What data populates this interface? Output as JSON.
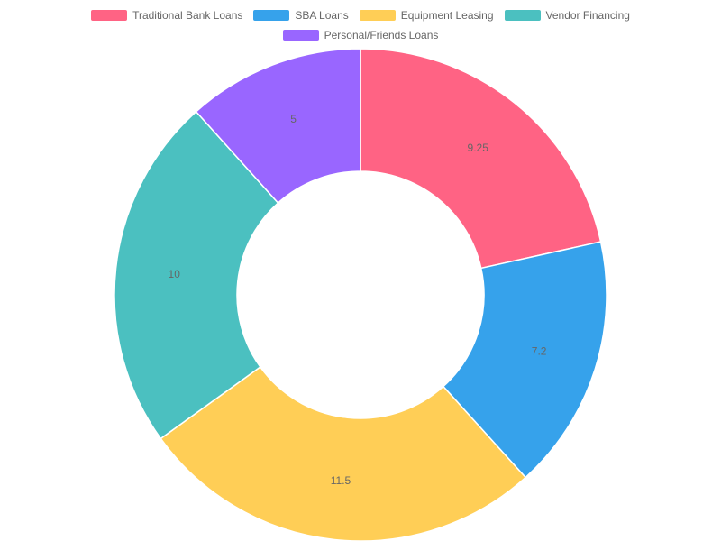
{
  "chart_data": {
    "type": "pie",
    "variant": "doughnut",
    "title": "",
    "legend_position": "top",
    "categories": [
      "Traditional Bank Loans",
      "SBA Loans",
      "Equipment Leasing",
      "Vendor Financing",
      "Personal/Friends Loans"
    ],
    "values": [
      9.25,
      7.2,
      11.5,
      10,
      5
    ],
    "data_labels": [
      "9.25",
      "7.2",
      "11.5",
      "10",
      "5"
    ],
    "colors": [
      "#FF6384",
      "#36A2EB",
      "#FFCE56",
      "#4BC0C0",
      "#9966FF"
    ]
  }
}
